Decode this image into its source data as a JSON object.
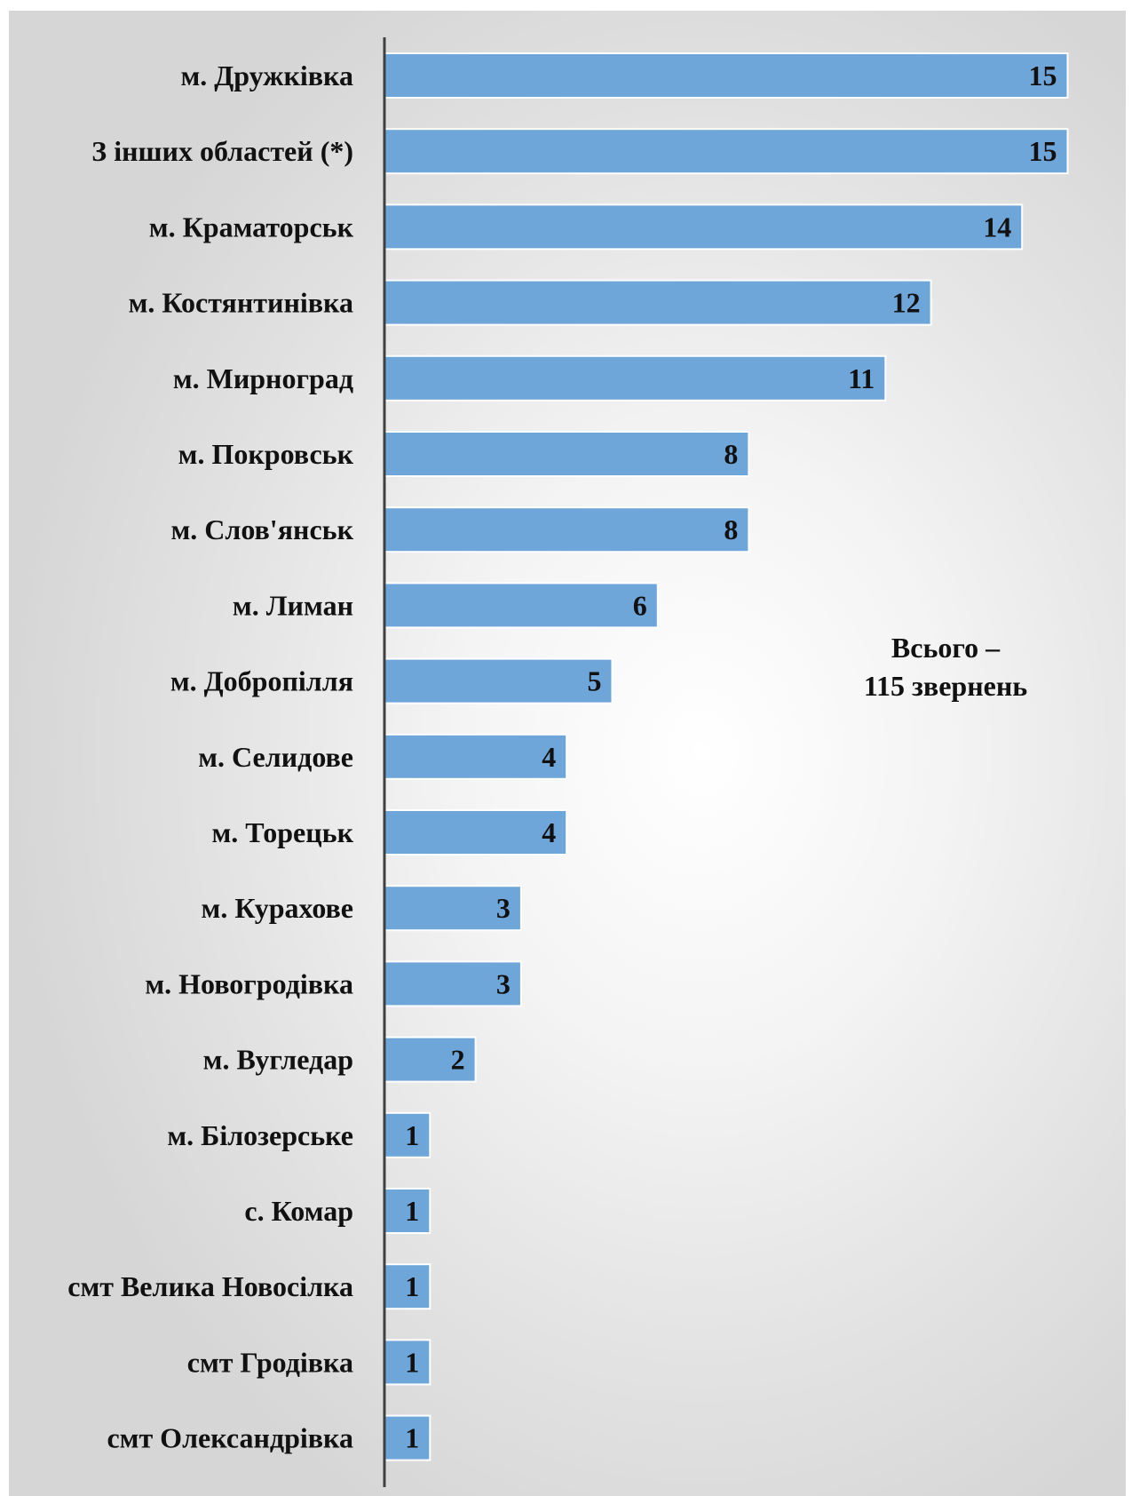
{
  "chart_data": {
    "type": "bar",
    "orientation": "horizontal",
    "categories": [
      "м. Дружківка",
      "З інших областей (*)",
      "м. Краматорськ",
      "м. Костянтинівка",
      "м. Мирноград",
      "м. Покровськ",
      "м. Слов'янськ",
      "м. Лиман",
      "м. Добропілля",
      "м. Селидове",
      "м. Торецьк",
      "м. Курахове",
      "м. Новогродівка",
      "м. Вугледар",
      "м. Білозерське",
      "с. Комар",
      "смт Велика Новосілка",
      "смт Гродівка",
      "смт Олександрівка"
    ],
    "values": [
      15,
      15,
      14,
      12,
      11,
      8,
      8,
      6,
      5,
      4,
      4,
      3,
      3,
      2,
      1,
      1,
      1,
      1,
      1
    ],
    "title": "",
    "xlabel": "",
    "ylabel": "",
    "xlim": [
      0,
      15
    ],
    "grid": false,
    "legend": "none",
    "data_labels": "inside-end",
    "bar_color": "#6fa6d9",
    "axis_color": "#404040",
    "annotation": {
      "line1": "Всього –",
      "line2": "115 звернень"
    }
  }
}
